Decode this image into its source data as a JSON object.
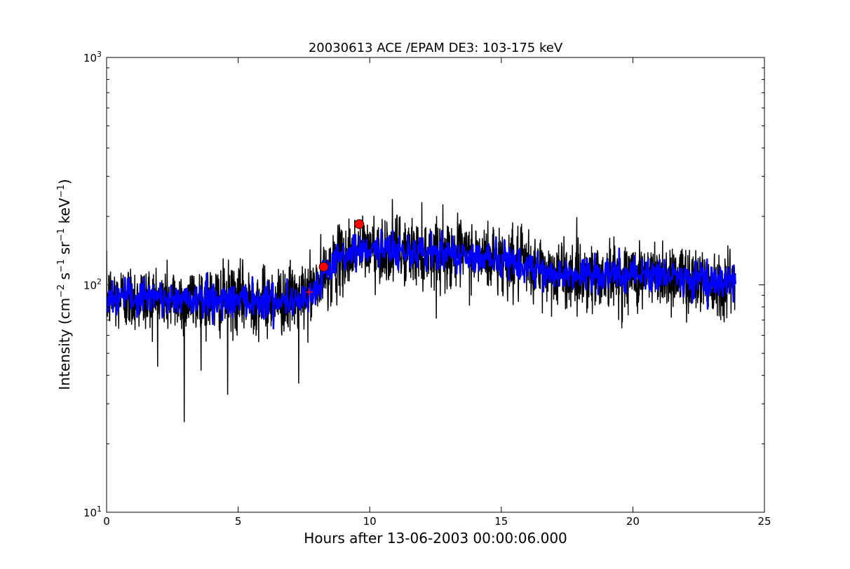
{
  "chart_data": {
    "type": "line",
    "title": "20030613 ACE /EPAM DE3: 103-175 keV",
    "xlabel": "Hours after 13-06-2003 00:00:06.000",
    "ylabel_main": "Intensity (cm",
    "ylabel_sup1": "−2",
    "ylabel_mid1": " s",
    "ylabel_sup2": "−1",
    "ylabel_mid2": " sr",
    "ylabel_sup3": "−1",
    "ylabel_mid3": " keV",
    "ylabel_sup4": "−1",
    "ylabel_end": ")",
    "xlim": [
      0,
      25
    ],
    "ylim": [
      10,
      1000
    ],
    "yscale": "log",
    "grid": false,
    "xticks": [
      {
        "value": 0,
        "label": "0"
      },
      {
        "value": 5,
        "label": "5"
      },
      {
        "value": 10,
        "label": "10"
      },
      {
        "value": 15,
        "label": "15"
      },
      {
        "value": 20,
        "label": "20"
      },
      {
        "value": 25,
        "label": "25"
      }
    ],
    "yticks": [
      {
        "value": 10,
        "base": "10",
        "exp": "1"
      },
      {
        "value": 100,
        "base": "10",
        "exp": "2"
      },
      {
        "value": 1000,
        "base": "10",
        "exp": "3"
      }
    ],
    "trend": {
      "x": [
        0,
        1,
        2,
        3,
        4,
        5,
        6,
        7,
        7.5,
        8,
        8.5,
        9,
        9.5,
        10,
        11,
        12,
        13,
        14,
        15,
        16,
        17,
        18,
        19,
        20,
        21,
        22,
        23,
        23.9
      ],
      "y": [
        88,
        88,
        87,
        86,
        86,
        87,
        86,
        86,
        88,
        98,
        118,
        132,
        142,
        145,
        142,
        138,
        137,
        135,
        128,
        120,
        113,
        110,
        110,
        110,
        110,
        108,
        104,
        102
      ]
    },
    "series": [
      {
        "color": "#000000",
        "x_end": 23.9,
        "step": 0.01,
        "noise_sigma": 0.17,
        "seed": 12345
      },
      {
        "color": "#0000ff",
        "x_end": 23.9,
        "step": 0.02,
        "noise_sigma": 0.09,
        "seed": 777
      }
    ],
    "spikes": [
      {
        "x": 2.95,
        "y": 25
      },
      {
        "x": 4.6,
        "y": 33
      },
      {
        "x": 7.3,
        "y": 37
      }
    ],
    "markers": [
      {
        "x": 8.25,
        "y": 120,
        "color": "#ff0000",
        "shape": "circle"
      },
      {
        "x": 9.6,
        "y": 185,
        "color": "#ff0000",
        "shape": "circle"
      },
      {
        "x": 7.7,
        "y": 93,
        "color": "#ff0000",
        "shape": "plus"
      }
    ]
  }
}
